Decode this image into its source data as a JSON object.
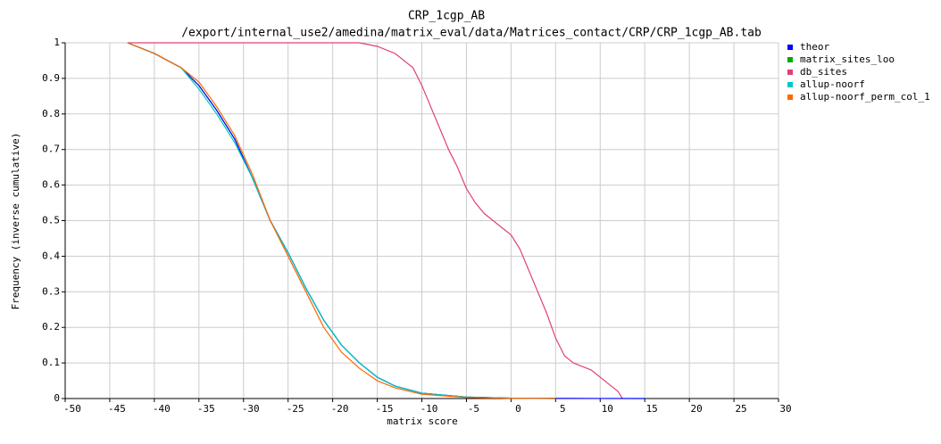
{
  "chart_data": {
    "type": "line",
    "title": "CRP_1cgp_AB",
    "subtitle": "/export/internal_use2/amedina/matrix_eval/data/Matrices_contact/CRP/CRP_1cgp_AB.tab",
    "x_label": "matrix score",
    "y_label": "Frequency (inverse cumulative)",
    "xlim": [
      -50,
      30
    ],
    "ylim": [
      0,
      1
    ],
    "xticks": [
      -50,
      -45,
      -40,
      -35,
      -30,
      -25,
      -20,
      -15,
      -10,
      -5,
      0,
      5,
      10,
      15,
      20,
      25,
      30
    ],
    "yticks": [
      0,
      0.1,
      0.2,
      0.3,
      0.4,
      0.5,
      0.6,
      0.7,
      0.8,
      0.9,
      1
    ],
    "grid": true,
    "legend": "right",
    "series": [
      {
        "name": "theor",
        "color": "#0000ff",
        "x": [
          -43,
          -40,
          -37,
          -35,
          -33,
          -31,
          -29,
          -27,
          -25,
          -23,
          -21,
          -19,
          -17,
          -15,
          -13,
          -10,
          -5,
          0,
          5,
          10,
          15
        ],
        "values": [
          1,
          0.97,
          0.93,
          0.88,
          0.81,
          0.73,
          0.62,
          0.5,
          0.41,
          0.31,
          0.22,
          0.15,
          0.1,
          0.06,
          0.035,
          0.015,
          0.004,
          0.001,
          0.0005,
          0.0002,
          0
        ]
      },
      {
        "name": "matrix_sites_loo",
        "color": "#00aa00",
        "x": [
          -43,
          -40,
          -37,
          -35,
          -33,
          -31,
          -29,
          -27,
          -25,
          -23,
          -21,
          -19,
          -17,
          -15,
          -13,
          -10,
          -5,
          0,
          5
        ],
        "values": [
          1,
          0.97,
          0.93,
          0.88,
          0.81,
          0.73,
          0.62,
          0.5,
          0.41,
          0.31,
          0.22,
          0.15,
          0.1,
          0.06,
          0.035,
          0.015,
          0.004,
          0.001,
          0
        ]
      },
      {
        "name": "db_sites",
        "color": "#e0407a",
        "x": [
          -43,
          -17,
          -15,
          -13,
          -11,
          -10,
          -9,
          -8,
          -7,
          -6,
          -5,
          -4,
          -3,
          -2,
          -1,
          0,
          1,
          2,
          3,
          4,
          5,
          6,
          7,
          8,
          9,
          10,
          11,
          12,
          12.5
        ],
        "values": [
          1,
          1,
          0.99,
          0.97,
          0.93,
          0.88,
          0.82,
          0.76,
          0.7,
          0.65,
          0.59,
          0.55,
          0.52,
          0.5,
          0.48,
          0.46,
          0.42,
          0.36,
          0.3,
          0.24,
          0.17,
          0.12,
          0.1,
          0.09,
          0.08,
          0.06,
          0.04,
          0.02,
          0
        ]
      },
      {
        "name": "allup-noorf",
        "color": "#00c8c8",
        "x": [
          -43,
          -40,
          -37,
          -35,
          -33,
          -31,
          -29,
          -27,
          -25,
          -23,
          -21,
          -19,
          -17,
          -15,
          -13,
          -10,
          -5,
          0,
          5
        ],
        "values": [
          1,
          0.97,
          0.93,
          0.87,
          0.8,
          0.72,
          0.62,
          0.5,
          0.41,
          0.31,
          0.22,
          0.15,
          0.1,
          0.06,
          0.035,
          0.015,
          0.004,
          0.001,
          0
        ]
      },
      {
        "name": "allup-noorf_perm_col_1",
        "color": "#ff6600",
        "x": [
          -43,
          -40,
          -37,
          -35,
          -33,
          -31,
          -29,
          -27,
          -25,
          -23,
          -21,
          -19,
          -17,
          -15,
          -13,
          -10,
          -5,
          0,
          5
        ],
        "values": [
          1,
          0.97,
          0.93,
          0.89,
          0.82,
          0.74,
          0.63,
          0.5,
          0.4,
          0.3,
          0.2,
          0.13,
          0.085,
          0.05,
          0.03,
          0.012,
          0.003,
          0.001,
          0
        ]
      }
    ]
  }
}
